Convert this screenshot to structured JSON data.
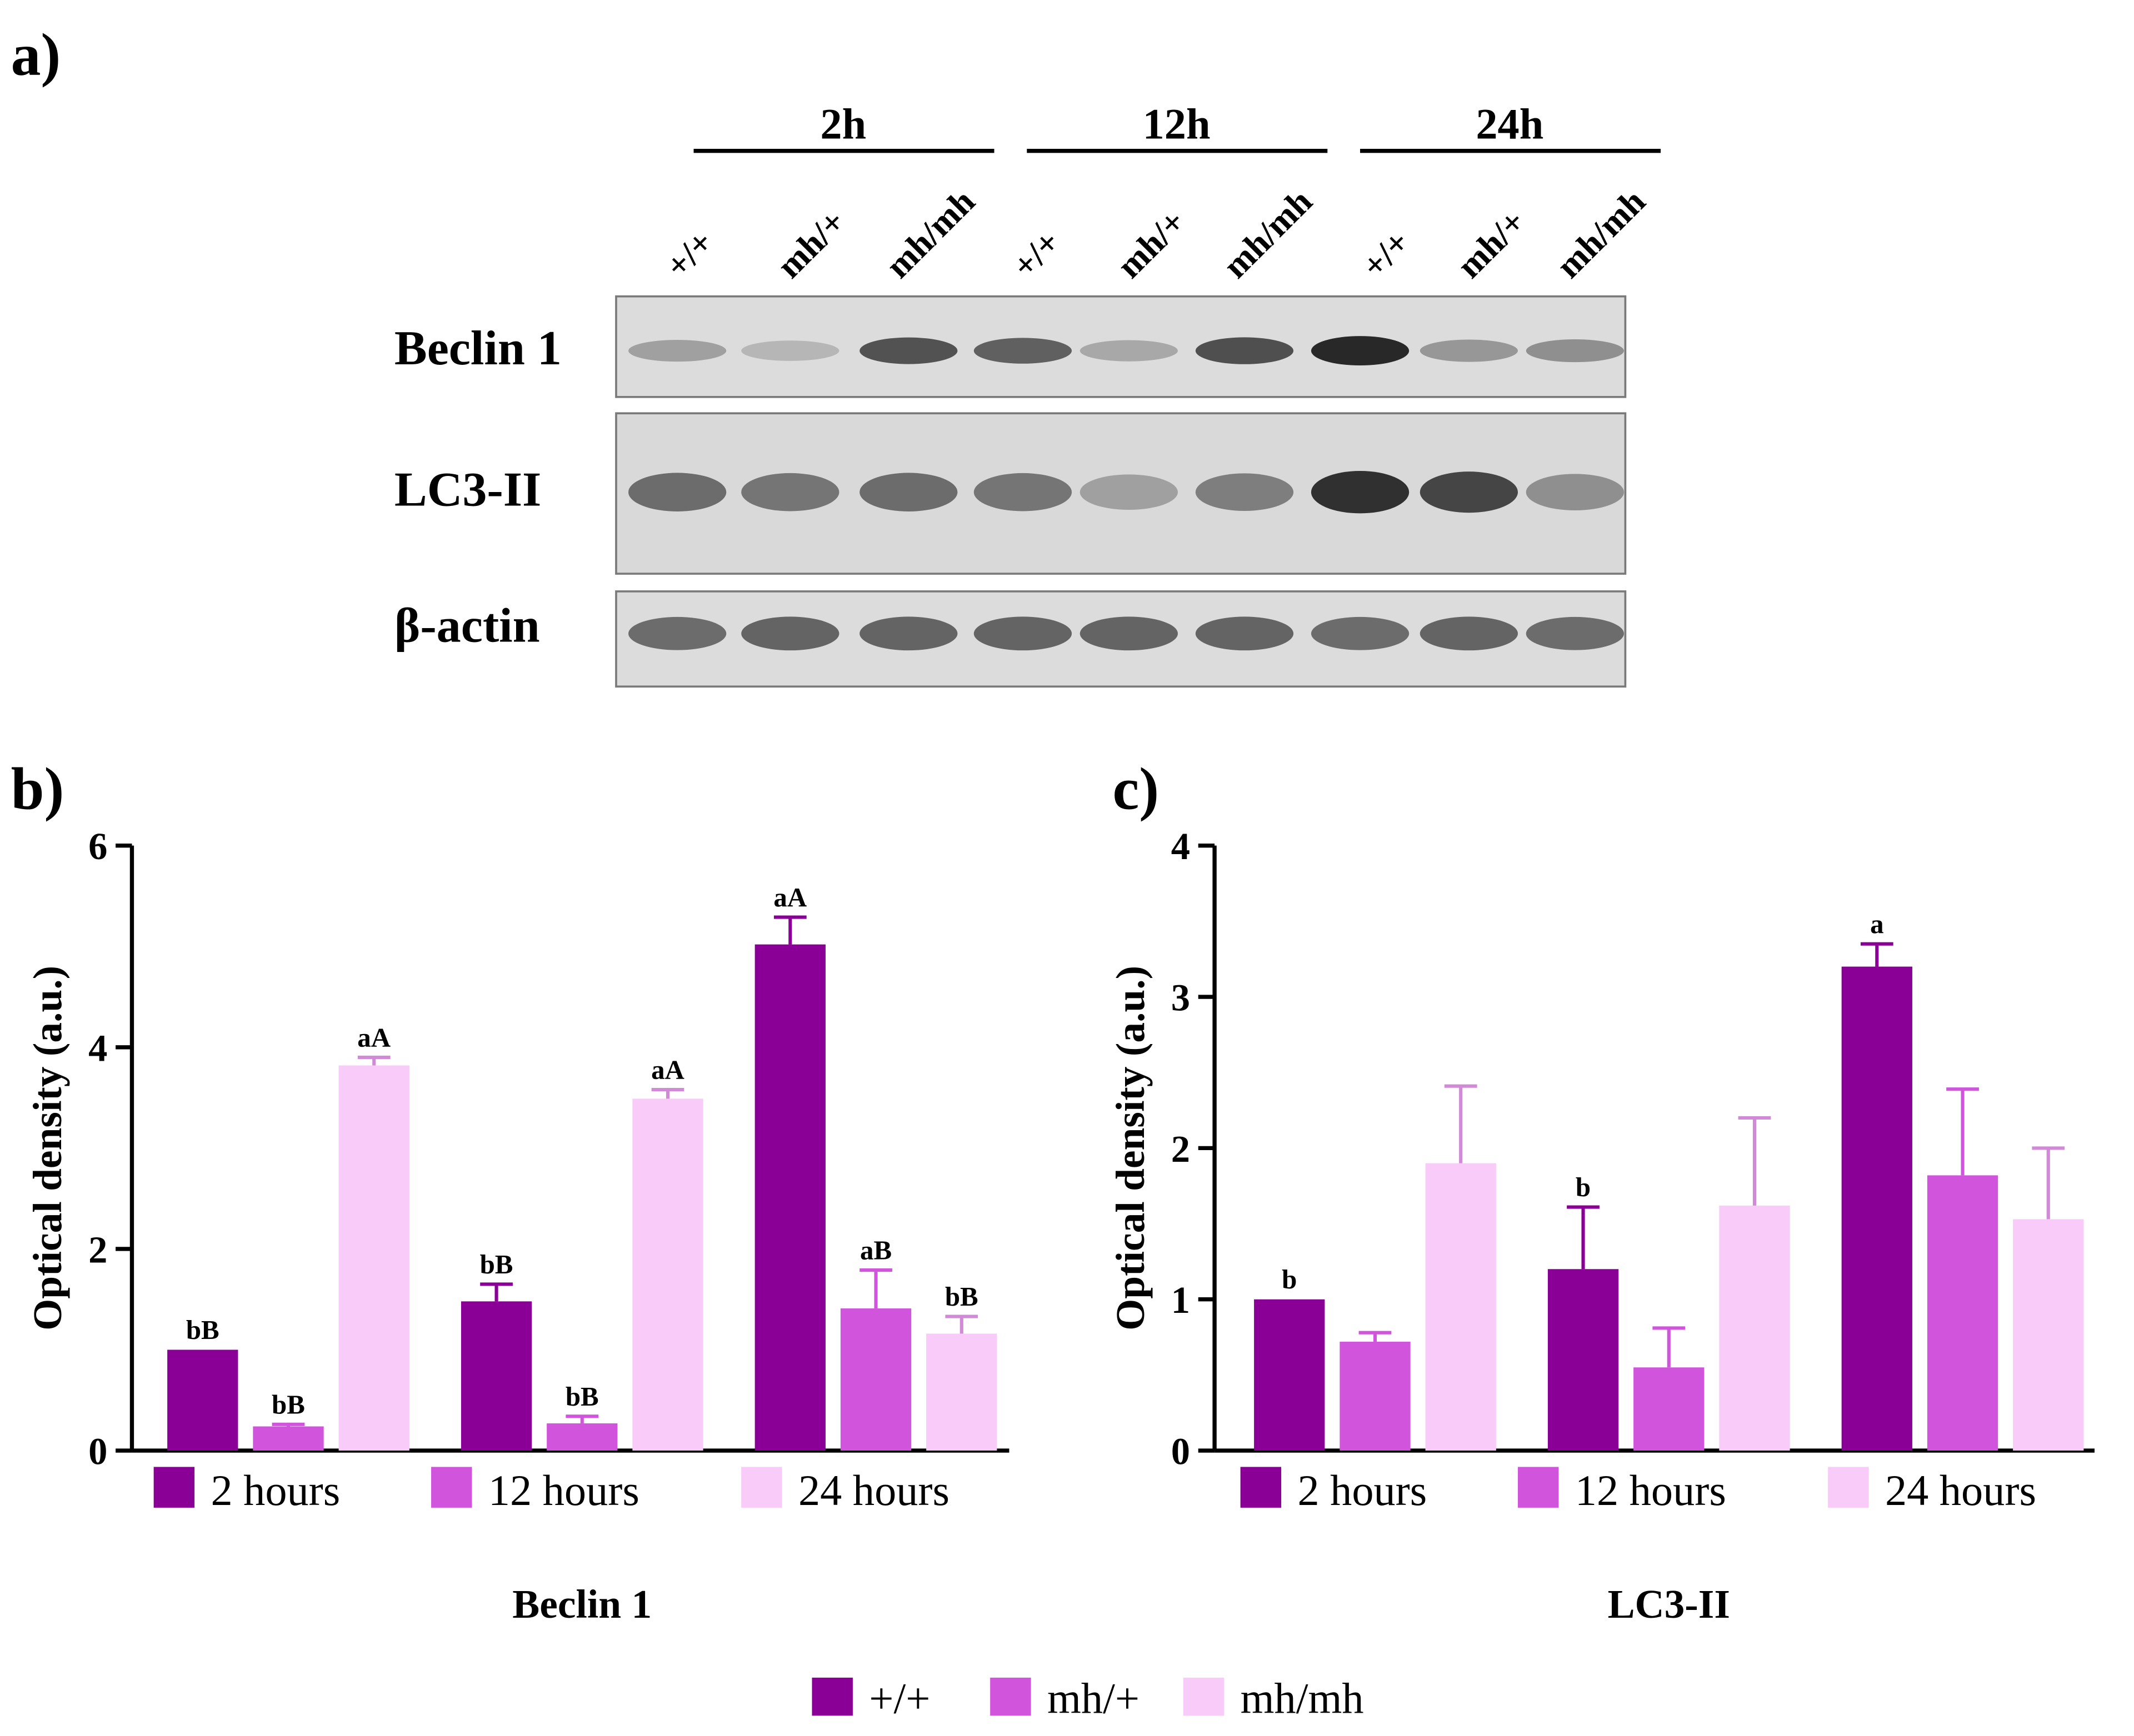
{
  "panel_labels": {
    "a": "a)",
    "b": "b)",
    "c": "c)"
  },
  "blot": {
    "time_groups": [
      "2h",
      "12h",
      "24h"
    ],
    "lanes": [
      "+/+",
      "mh/+",
      "mh/mh",
      "+/+",
      "mh/+",
      "mh/mh",
      "+/+",
      "mh/+",
      "mh/mh"
    ],
    "rows": [
      {
        "label": "Beclin 1",
        "intensity": [
          0.25,
          0.12,
          0.7,
          0.62,
          0.2,
          0.72,
          0.95,
          0.3,
          0.35
        ]
      },
      {
        "label": "LC3-II",
        "intensity": [
          0.55,
          0.5,
          0.55,
          0.5,
          0.25,
          0.45,
          0.9,
          0.78,
          0.35
        ]
      },
      {
        "label": "β-actin",
        "intensity": [
          0.55,
          0.6,
          0.6,
          0.6,
          0.6,
          0.6,
          0.55,
          0.6,
          0.55
        ]
      }
    ]
  },
  "series_legend": [
    "+/+",
    "mh/+",
    "mh/mh"
  ],
  "colors": {
    "wt": "#8a0096",
    "het": "#d155dc",
    "mut": "#f8cbf8"
  },
  "chart_data": [
    {
      "type": "bar",
      "title": "Beclin 1",
      "ylabel": "Optical density (a.u.)",
      "ylim": [
        0,
        6
      ],
      "yticks": [
        0,
        2,
        4,
        6
      ],
      "categories": [
        "2 hours",
        "12 hours",
        "24 hours"
      ],
      "series": [
        {
          "name": "+/+",
          "values": [
            1.0,
            1.48,
            5.02
          ],
          "errors": [
            0.0,
            0.17,
            0.27
          ],
          "labels": [
            "bB",
            "bB",
            "aA"
          ]
        },
        {
          "name": "mh/+",
          "values": [
            0.24,
            0.27,
            1.41
          ],
          "errors": [
            0.02,
            0.07,
            0.38
          ],
          "labels": [
            "bB",
            "bB",
            "aB"
          ]
        },
        {
          "name": "mh/mh",
          "values": [
            3.82,
            3.49,
            1.16
          ],
          "errors": [
            0.08,
            0.09,
            0.17
          ],
          "labels": [
            "aA",
            "aA",
            "bB"
          ]
        }
      ]
    },
    {
      "type": "bar",
      "title": "LC3-II",
      "ylabel": "Optical density (a.u.)",
      "ylim": [
        0,
        4
      ],
      "yticks": [
        0,
        1,
        2,
        3,
        4
      ],
      "categories": [
        "2 hours",
        "12 hours",
        "24 hours"
      ],
      "series": [
        {
          "name": "+/+",
          "values": [
            1.0,
            1.2,
            3.2
          ],
          "errors": [
            0.0,
            0.41,
            0.15
          ],
          "labels": [
            "b",
            "b",
            "a"
          ]
        },
        {
          "name": "mh/+",
          "values": [
            0.72,
            0.55,
            1.82
          ],
          "errors": [
            0.06,
            0.26,
            0.57
          ],
          "labels": [
            "",
            "",
            ""
          ]
        },
        {
          "name": "mh/mh",
          "values": [
            1.9,
            1.62,
            1.53
          ],
          "errors": [
            0.51,
            0.58,
            0.47
          ],
          "labels": [
            "",
            "",
            ""
          ]
        }
      ]
    }
  ]
}
